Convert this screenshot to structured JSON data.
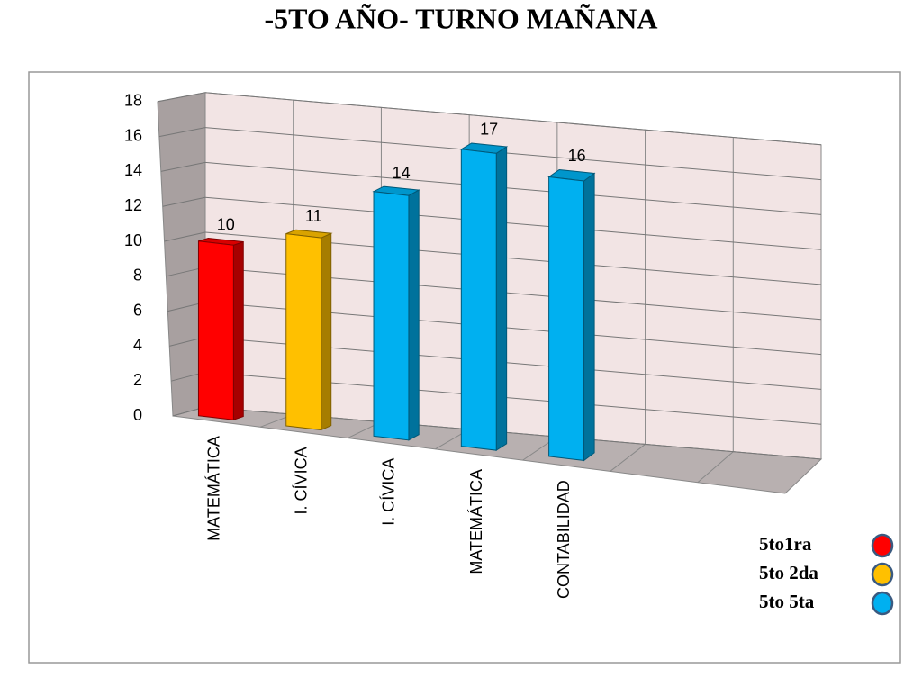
{
  "chart_data": {
    "type": "bar3d",
    "title": "-5TO AÑO- TURNO MAÑANA",
    "categories": [
      "MATEMÁTICA",
      "I. CÍVICA",
      "I. CÍVICA",
      "MATEMÁTICA",
      "CONTABILIDAD",
      null,
      null
    ],
    "series": [
      {
        "name": "5to1ra",
        "color": "#ff0000",
        "values": [
          10,
          null,
          null,
          null,
          null,
          null,
          null
        ]
      },
      {
        "name": "5to 2da",
        "color": "#ffc000",
        "values": [
          null,
          11,
          null,
          null,
          null,
          null,
          null
        ]
      },
      {
        "name": "5to 5ta",
        "color": "#00b0f0",
        "values": [
          null,
          null,
          14,
          17,
          16,
          null,
          null
        ]
      }
    ],
    "ylim": [
      0,
      18
    ],
    "yticks": [
      0,
      2,
      4,
      6,
      8,
      10,
      12,
      14,
      16,
      18
    ],
    "grid": true
  }
}
